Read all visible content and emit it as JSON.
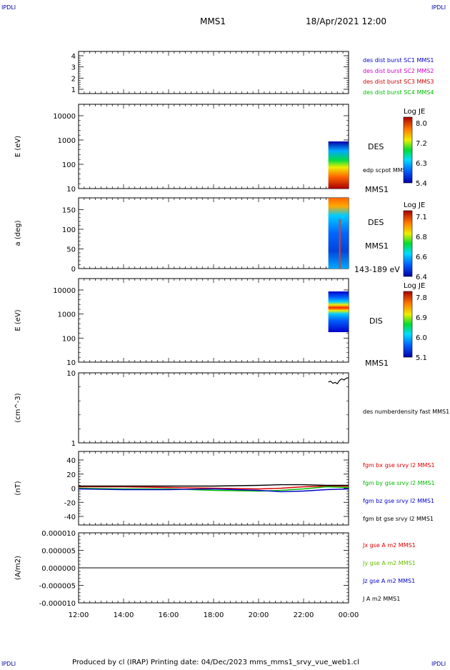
{
  "corner_label": "IPDLI",
  "header": {
    "mission": "MMS1",
    "date": "18/Apr/2021 12:00"
  },
  "footer": "Produced by cl (IRAP)   Printing date: 04/Dec/2023   mms_mms1_srvy_vue_web1.cl",
  "colors": {
    "mms1": "#0000cc",
    "mms2": "#cc00cc",
    "mms3": "#cc0000",
    "mms4": "#00bb00",
    "bx": "#dd0000",
    "by": "#00bb00",
    "bz": "#0000cc",
    "bt": "#000000",
    "jx": "#dd0000",
    "jy": "#66bb00",
    "jz": "#0000cc",
    "j": "#000000"
  },
  "chart_data": [
    {
      "id": "panel1",
      "type": "line",
      "yticks": [
        "4",
        "3",
        "2",
        "1"
      ],
      "ylim": [
        0.5,
        4.5
      ],
      "legend": [
        {
          "text": "des dist burst SC1 MMS1",
          "color": "mms1"
        },
        {
          "text": "des dist burst SC2 MMS2",
          "color": "mms2"
        },
        {
          "text": "des dist burst SC3 MMS3",
          "color": "mms3"
        },
        {
          "text": "des dist burst SC4 MMS4",
          "color": "mms4"
        }
      ]
    },
    {
      "id": "panel2",
      "type": "heatmap",
      "ylabel": "E (eV)",
      "yticks": [
        "10000",
        "1000",
        "100",
        "10"
      ],
      "log_range": [
        1,
        4.3
      ],
      "active_hours": [
        23.1,
        24.0
      ],
      "y_active": [
        10,
        950
      ],
      "labels": [
        "DES",
        "edp scpot MMS1",
        "MMS1"
      ],
      "colorbar": {
        "title": "Log JE",
        "ticks": [
          "8.0",
          "7.2",
          "6.3",
          "5.4"
        ]
      }
    },
    {
      "id": "panel3",
      "type": "heatmap",
      "ylabel": "a (deg)",
      "yticks": [
        "150",
        "100",
        "50",
        "0"
      ],
      "ylim": [
        0,
        180
      ],
      "active_hours": [
        23.1,
        24.0
      ],
      "labels": [
        "DES",
        "MMS1",
        "143-189 eV"
      ],
      "colorbar": {
        "title": "Log JE",
        "ticks": [
          "7.1",
          "6.8",
          "6.6",
          "6.4"
        ]
      }
    },
    {
      "id": "panel4",
      "type": "heatmap",
      "ylabel": "E (eV)",
      "yticks": [
        "10000",
        "1000",
        "100",
        "10"
      ],
      "log_range": [
        1,
        4.3
      ],
      "active_hours": [
        23.1,
        24.0
      ],
      "y_active": [
        200,
        9000
      ],
      "labels": [
        "DIS",
        "MMS1"
      ],
      "colorbar": {
        "title": "Log JE",
        "ticks": [
          "7.8",
          "6.9",
          "6.0",
          "5.1"
        ]
      }
    },
    {
      "id": "panel5",
      "type": "line",
      "ylabel": "(cm^-3)",
      "yticks": [
        "10",
        "1"
      ],
      "ylim": [
        1,
        10
      ],
      "log": true,
      "series": [
        {
          "name": "des numberdensity fast MMS1",
          "x": [
            23.1,
            23.2,
            23.3,
            23.4,
            23.5,
            23.6,
            23.7,
            23.8,
            23.9,
            24.0
          ],
          "values": [
            7.4,
            7.6,
            7.1,
            7.3,
            7.0,
            7.8,
            8.2,
            7.9,
            8.4,
            8.5
          ]
        }
      ]
    },
    {
      "id": "panel6",
      "type": "line",
      "ylabel": "(nT)",
      "yticks": [
        "40",
        "20",
        "0",
        "-20",
        "-40"
      ],
      "ylim": [
        -50,
        50
      ],
      "series": [
        {
          "name": "fgm bx gse srvy l2 MMS1",
          "color": "bx",
          "x": [
            12,
            14,
            16,
            18,
            20,
            21,
            22,
            23,
            24
          ],
          "values": [
            2,
            2,
            1,
            0,
            -1,
            0,
            2,
            3,
            3
          ]
        },
        {
          "name": "fgm by gse srvy l2 MMS1",
          "color": "by",
          "x": [
            12,
            14,
            16,
            18,
            20,
            21,
            22,
            23,
            24
          ],
          "values": [
            0,
            -1,
            -1,
            -3,
            -4,
            -3,
            -1,
            2,
            1
          ]
        },
        {
          "name": "fgm bz gse srvy l2 MMS1",
          "color": "bz",
          "x": [
            12,
            14,
            16,
            18,
            20,
            21,
            22,
            23,
            24
          ],
          "values": [
            -1,
            -2,
            -2,
            -1,
            -3,
            -5,
            -4,
            -2,
            -1
          ]
        },
        {
          "name": "fgm bt gse srvy l2 MMS1",
          "color": "bt",
          "x": [
            12,
            14,
            16,
            18,
            20,
            21,
            22,
            23,
            24
          ],
          "values": [
            3,
            3,
            3,
            3,
            4,
            5,
            5,
            4,
            4
          ]
        }
      ]
    },
    {
      "id": "panel7",
      "type": "line",
      "ylabel": "(A/m2)",
      "yticks": [
        "0.000010",
        "0.000005",
        "0.000000",
        "-0.000005",
        "-0.000010"
      ],
      "ylim": [
        -1e-05,
        1e-05
      ],
      "series": [
        {
          "name": "Jx gse A m2 MMS1",
          "color": "jx"
        },
        {
          "name": "Jy gse A m2 MMS1",
          "color": "jy"
        },
        {
          "name": "Jz gse A m2 MMS1",
          "color": "jz"
        },
        {
          "name": "J A m2 MMS1",
          "color": "j",
          "x": [
            12,
            24
          ],
          "values": [
            0,
            0
          ]
        }
      ]
    }
  ],
  "xaxis": {
    "ticks": [
      "12:00",
      "14:00",
      "16:00",
      "18:00",
      "20:00",
      "22:00",
      "00:00"
    ],
    "range_hours": [
      12,
      24
    ]
  }
}
